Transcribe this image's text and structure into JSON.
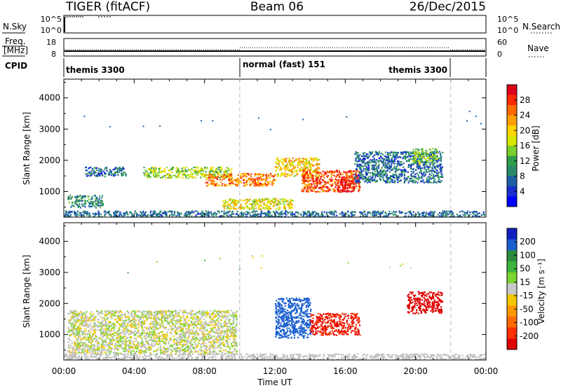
{
  "header": {
    "title": "TIGER (fitACF)",
    "beam": "Beam 06",
    "date": "26/Dec/2015"
  },
  "top_panels": {
    "nsky": {
      "label": "N.Sky",
      "ticks": [
        "10^5",
        "10^0"
      ],
      "right_ticks": [
        "10^5",
        "10^0"
      ],
      "right_label": "N.Search"
    },
    "freq": {
      "label_line1": "Freq.",
      "label_line2": "[MHz]",
      "ticks": [
        "18",
        "8"
      ],
      "right_ticks": [
        "60",
        "0"
      ],
      "right_label": "Nave"
    },
    "cpid": {
      "label": "CPID",
      "segments": [
        {
          "text": "themis 3300",
          "start_hour": 0,
          "end_hour": 10
        },
        {
          "text": "normal (fast) 151",
          "start_hour": 10,
          "end_hour": 22
        },
        {
          "text": "themis 3300",
          "start_hour": 22,
          "end_hour": 24
        }
      ]
    }
  },
  "chart_data": [
    {
      "type": "heatmap",
      "name": "power-panel",
      "ylabel": "Slant Range [km]",
      "ylim": [
        180,
        4600
      ],
      "xlim": [
        0,
        24
      ],
      "y_ticks": [
        1000,
        2000,
        3000,
        4000
      ],
      "colorbar": {
        "label": "Power [dB]",
        "ticks": [
          "28",
          "24",
          "20",
          "16",
          "12",
          "8",
          "4"
        ],
        "colors": [
          "#e0001a",
          "#ff2a00",
          "#ff6a00",
          "#ffa000",
          "#ffd400",
          "#d7e800",
          "#7dcf2a",
          "#2e9e4a",
          "#2a8a6a",
          "#1f5fa8",
          "#1a2ed0",
          "#0000ff"
        ]
      },
      "approx_regions": [
        {
          "hours": [
            0.2,
            2.2
          ],
          "range_km": [
            500,
            900
          ],
          "dB": 8
        },
        {
          "hours": [
            1.2,
            3.5
          ],
          "range_km": [
            1500,
            1800
          ],
          "dB": 6
        },
        {
          "hours": [
            4.5,
            9.5
          ],
          "range_km": [
            1450,
            1800
          ],
          "dB": 14
        },
        {
          "hours": [
            8.0,
            12.0
          ],
          "range_km": [
            1200,
            1600
          ],
          "dB": 22
        },
        {
          "hours": [
            9.0,
            13.0
          ],
          "range_km": [
            450,
            800
          ],
          "dB": 16
        },
        {
          "hours": [
            12.0,
            14.5
          ],
          "range_km": [
            1500,
            2100
          ],
          "dB": 18
        },
        {
          "hours": [
            13.5,
            16.8
          ],
          "range_km": [
            1000,
            1700
          ],
          "dB": 24
        },
        {
          "hours": [
            15.5,
            16.5
          ],
          "range_km": [
            1000,
            1500
          ],
          "dB": 28
        },
        {
          "hours": [
            16.5,
            21.5
          ],
          "range_km": [
            1300,
            2300
          ],
          "dB": 6
        },
        {
          "hours": [
            19.8,
            21.2
          ],
          "range_km": [
            1900,
            2400
          ],
          "dB": 12
        }
      ]
    },
    {
      "type": "heatmap",
      "name": "velocity-panel",
      "ylabel": "Slant Range [km]",
      "ylim": [
        180,
        4600
      ],
      "xlim": [
        0,
        24
      ],
      "y_ticks": [
        1000,
        2000,
        3000,
        4000
      ],
      "colorbar": {
        "label": "Velocity [m s⁻¹]",
        "ticks": [
          "200",
          "100",
          "50",
          "15",
          "-15",
          "-50",
          "-100",
          "-200"
        ],
        "colors": [
          "#1020c0",
          "#1a5fd0",
          "#2c8c3c",
          "#3db53d",
          "#7ad62e",
          "#c8c8c8",
          "#f2c800",
          "#ff9900",
          "#ff6a00",
          "#ff3000",
          "#e00000"
        ]
      },
      "approx_regions": [
        {
          "hours": [
            0.2,
            9.8
          ],
          "range_km": [
            400,
            1800
          ],
          "velocity": 0
        },
        {
          "hours": [
            12.0,
            14.0
          ],
          "range_km": [
            900,
            2200
          ],
          "velocity": 120
        },
        {
          "hours": [
            14.0,
            16.8
          ],
          "range_km": [
            1000,
            1700
          ],
          "velocity": -150
        },
        {
          "hours": [
            19.5,
            21.5
          ],
          "range_km": [
            1700,
            2400
          ],
          "velocity": -200
        }
      ]
    }
  ],
  "x_axis": {
    "label": "Time UT",
    "ticks": [
      "00:00",
      "04:00",
      "08:00",
      "12:00",
      "16:00",
      "20:00",
      "00:00"
    ]
  },
  "colors": {
    "axis": "#000000",
    "dashed_line": "#bbbbbb",
    "ground_scatter": "#bfbfbf"
  }
}
